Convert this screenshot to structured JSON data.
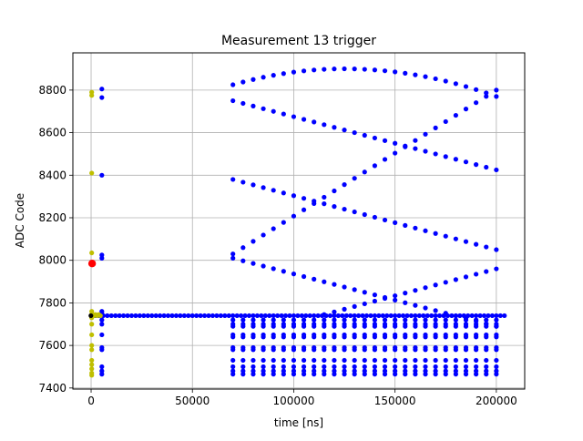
{
  "chart_data": {
    "type": "scatter",
    "title": "Measurement 13 trigger",
    "xlabel": "time [ns]",
    "ylabel": "ADC Code",
    "xlim": [
      -9000,
      214000
    ],
    "ylim": [
      7395,
      8975
    ],
    "xticks": [
      0,
      50000,
      100000,
      150000,
      200000
    ],
    "xtick_labels": [
      "0",
      "50000",
      "100000",
      "150000",
      "200000"
    ],
    "yticks": [
      7400,
      7600,
      7800,
      8000,
      8200,
      8400,
      8600,
      8800
    ],
    "ytick_labels": [
      "7400",
      "7600",
      "7800",
      "8000",
      "8200",
      "8400",
      "8600",
      "8800"
    ],
    "grid": true,
    "colors": {
      "blue": "#0000ff",
      "olive": "#bfbf00",
      "red": "#ff0000",
      "black": "#000000",
      "axis": "#000000",
      "grid": "#b0b0b0"
    },
    "series": [
      {
        "color": "blue",
        "baseline": {
          "y": 7740,
          "x_start": 2000,
          "x_end": 205000,
          "step": 2000
        },
        "columns": [
          {
            "x": 5300,
            "y": [
              8805,
              8765,
              8400,
              8025,
              8010,
              7760,
              7750,
              7720,
              7700,
              7650,
              7590,
              7580,
              7500,
              7480,
              7465
            ]
          },
          {
            "x_start": 70000,
            "x_end": 200000,
            "step": 5000,
            "y": [
              7720,
              7700,
              7690,
              7650,
              7640,
              7590,
              7580,
              7530,
              7500,
              7480,
              7465
            ]
          }
        ],
        "curves": [
          {
            "x_start": 70000,
            "x_end": 200000,
            "step": 5000,
            "y_start": 8825,
            "y_peak": 8900,
            "x_peak": 125000,
            "y_end": 8770
          },
          {
            "x_start": 70000,
            "x_end": 200000,
            "step": 5000,
            "y_start": 8750,
            "y_end": 8425
          },
          {
            "x_start": 70000,
            "x_end": 200000,
            "step": 5000,
            "y_start": 8380,
            "y_end": 8050
          },
          {
            "x_start": 70000,
            "x_end": 200000,
            "step": 5000,
            "y_start": 8010,
            "y_end": 7690
          },
          {
            "x_start": 70000,
            "x_end": 200000,
            "step": 5000,
            "y_start": 8030,
            "y_end": 8800
          },
          {
            "x_start": 115000,
            "x_end": 200000,
            "step": 5000,
            "y_start": 7745,
            "y_end": 7960
          }
        ]
      },
      {
        "color": "olive",
        "points": [
          {
            "x": 300,
            "y": 8790
          },
          {
            "x": 300,
            "y": 8775
          },
          {
            "x": 300,
            "y": 8410
          },
          {
            "x": 300,
            "y": 8035
          },
          {
            "x": 300,
            "y": 7760
          },
          {
            "x": 300,
            "y": 7745
          },
          {
            "x": 300,
            "y": 7730
          },
          {
            "x": 300,
            "y": 7700
          },
          {
            "x": 300,
            "y": 7650
          },
          {
            "x": 300,
            "y": 7600
          },
          {
            "x": 300,
            "y": 7580
          },
          {
            "x": 300,
            "y": 7530
          },
          {
            "x": 300,
            "y": 7510
          },
          {
            "x": 300,
            "y": 7490
          },
          {
            "x": 300,
            "y": 7470
          },
          {
            "x": 300,
            "y": 7460
          },
          {
            "x": 900,
            "y": 7745
          },
          {
            "x": 1500,
            "y": 7740
          },
          {
            "x": 2200,
            "y": 7745
          },
          {
            "x": 3000,
            "y": 7740
          },
          {
            "x": 3800,
            "y": 7745
          },
          {
            "x": 4600,
            "y": 7740
          }
        ]
      },
      {
        "color": "red",
        "points": [
          {
            "x": 500,
            "y": 7985
          }
        ]
      },
      {
        "color": "black",
        "points": [
          {
            "x": -100,
            "y": 7740
          }
        ]
      }
    ]
  }
}
